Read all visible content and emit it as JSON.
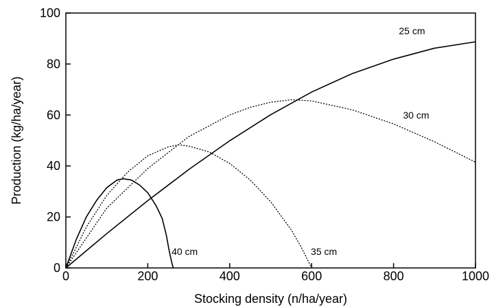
{
  "chart_data": {
    "type": "line",
    "title": "",
    "xlabel": "Stocking density (n/ha/year)",
    "ylabel": "Production (kg/ha/year)",
    "xlim": [
      0,
      1000
    ],
    "ylim": [
      0,
      100
    ],
    "xticks": [
      "0",
      "200",
      "400",
      "600",
      "800",
      "1000"
    ],
    "yticks": [
      "0",
      "20",
      "40",
      "60",
      "80",
      "100"
    ],
    "grid": false,
    "legend": "none",
    "line_color": "#000000",
    "series": [
      {
        "name": "25 cm",
        "style": "solid",
        "x": [
          0,
          100,
          200,
          300,
          400,
          500,
          600,
          700,
          800,
          900,
          1000
        ],
        "y": [
          0,
          13.5,
          26.4,
          38.6,
          49.9,
          60.1,
          69.0,
          76.3,
          81.9,
          86.2,
          88.7
        ]
      },
      {
        "name": "30 cm",
        "style": "dotted",
        "x": [
          0,
          100,
          200,
          300,
          400,
          450,
          500,
          550,
          600,
          700,
          800,
          900,
          1000
        ],
        "y": [
          0,
          23.5,
          39.0,
          51.5,
          60.0,
          63.0,
          65.0,
          66.0,
          65.5,
          62.0,
          56.5,
          49.5,
          41.5
        ]
      },
      {
        "name": "35 cm",
        "style": "dotted",
        "x": [
          0,
          50,
          100,
          150,
          200,
          250,
          275,
          300,
          350,
          400,
          450,
          500,
          550,
          575,
          600
        ],
        "y": [
          0,
          16.0,
          28.5,
          37.5,
          44.0,
          47.5,
          48.3,
          47.8,
          45.5,
          41.0,
          34.5,
          26.0,
          15.0,
          8.0,
          0
        ]
      },
      {
        "name": "40 cm",
        "style": "solid",
        "x": [
          0,
          25,
          50,
          75,
          100,
          125,
          140,
          160,
          180,
          200,
          220,
          235,
          245,
          252,
          258,
          262
        ],
        "y": [
          0,
          11.0,
          20.0,
          26.5,
          31.5,
          34.5,
          35.0,
          34.5,
          32.5,
          29.5,
          24.5,
          19.5,
          13.0,
          7.0,
          2.5,
          0
        ]
      }
    ],
    "annotations": [
      {
        "text": "25 cm",
        "x": 845,
        "y": 93
      },
      {
        "text": "30 cm",
        "x": 855,
        "y": 60
      },
      {
        "text": "35 cm",
        "x": 630,
        "y": 6.5
      },
      {
        "text": "40 cm",
        "x": 290,
        "y": 6.5
      }
    ]
  }
}
